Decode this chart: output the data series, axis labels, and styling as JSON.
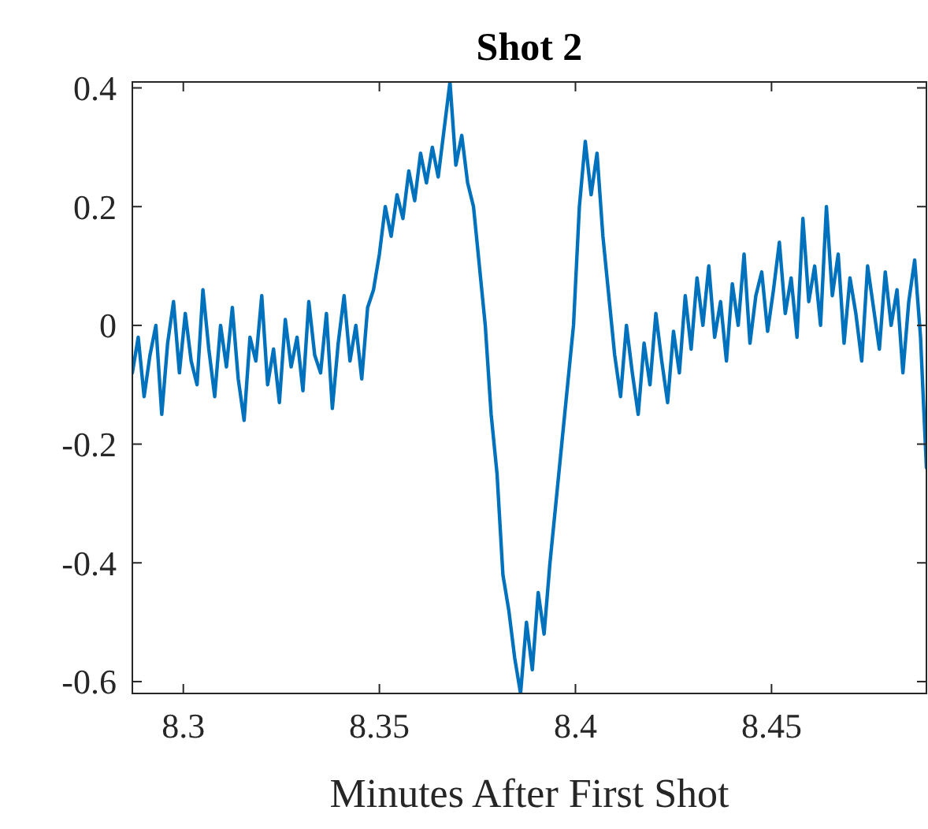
{
  "chart_data": {
    "type": "line",
    "title": "Shot 2",
    "xlabel": "Minutes After First Shot",
    "xlim": [
      8.287,
      8.4895
    ],
    "ylim": [
      -0.62,
      0.41
    ],
    "xticks": [
      8.3,
      8.35,
      8.4,
      8.45
    ],
    "yticks": [
      -0.6,
      -0.4,
      -0.2,
      0,
      0.2,
      0.4
    ],
    "grid": false,
    "series": [
      {
        "color": "#0072bd",
        "x": [
          8.287,
          8.2885,
          8.29,
          8.2915,
          8.293,
          8.2945,
          8.296,
          8.2975,
          8.299,
          8.3005,
          8.302,
          8.3035,
          8.305,
          8.3065,
          8.308,
          8.3095,
          8.311,
          8.3125,
          8.314,
          8.3155,
          8.317,
          8.3185,
          8.32,
          8.3215,
          8.323,
          8.3245,
          8.326,
          8.3275,
          8.329,
          8.3305,
          8.332,
          8.3335,
          8.335,
          8.3365,
          8.338,
          8.3395,
          8.341,
          8.3425,
          8.344,
          8.3455,
          8.347,
          8.3485,
          8.35,
          8.3515,
          8.353,
          8.3545,
          8.356,
          8.3575,
          8.359,
          8.3605,
          8.362,
          8.3635,
          8.365,
          8.3665,
          8.368,
          8.3695,
          8.371,
          8.3725,
          8.374,
          8.3755,
          8.377,
          8.3785,
          8.38,
          8.3815,
          8.383,
          8.3845,
          8.386,
          8.3875,
          8.389,
          8.3905,
          8.392,
          8.3935,
          8.395,
          8.3965,
          8.398,
          8.3995,
          8.401,
          8.4025,
          8.404,
          8.4055,
          8.407,
          8.4085,
          8.41,
          8.4115,
          8.413,
          8.4145,
          8.416,
          8.4175,
          8.419,
          8.4205,
          8.422,
          8.4235,
          8.425,
          8.4265,
          8.428,
          8.4295,
          8.431,
          8.4325,
          8.434,
          8.4355,
          8.437,
          8.4385,
          8.44,
          8.4415,
          8.443,
          8.4445,
          8.446,
          8.4475,
          8.449,
          8.4505,
          8.452,
          8.4535,
          8.455,
          8.4565,
          8.458,
          8.4595,
          8.461,
          8.4625,
          8.464,
          8.4655,
          8.467,
          8.4685,
          8.47,
          8.4715,
          8.473,
          8.4745,
          8.476,
          8.4775,
          8.479,
          8.4805,
          8.482,
          8.4835,
          8.485,
          8.4865,
          8.488,
          8.4895
        ],
        "values": [
          -0.08,
          -0.02,
          -0.12,
          -0.05,
          0.0,
          -0.15,
          -0.03,
          0.04,
          -0.08,
          0.02,
          -0.06,
          -0.1,
          0.06,
          -0.04,
          -0.12,
          0.0,
          -0.07,
          0.03,
          -0.09,
          -0.16,
          -0.02,
          -0.06,
          0.05,
          -0.1,
          -0.04,
          -0.13,
          0.01,
          -0.07,
          -0.02,
          -0.11,
          0.04,
          -0.05,
          -0.08,
          0.02,
          -0.14,
          -0.03,
          0.05,
          -0.06,
          0.0,
          -0.09,
          0.03,
          0.06,
          0.12,
          0.2,
          0.15,
          0.22,
          0.18,
          0.26,
          0.21,
          0.29,
          0.24,
          0.3,
          0.25,
          0.33,
          0.41,
          0.27,
          0.32,
          0.24,
          0.2,
          0.1,
          0.0,
          -0.15,
          -0.25,
          -0.42,
          -0.48,
          -0.56,
          -0.62,
          -0.5,
          -0.58,
          -0.45,
          -0.52,
          -0.4,
          -0.3,
          -0.2,
          -0.1,
          0.0,
          0.2,
          0.31,
          0.22,
          0.29,
          0.15,
          0.05,
          -0.05,
          -0.12,
          0.0,
          -0.08,
          -0.15,
          -0.03,
          -0.1,
          0.02,
          -0.06,
          -0.13,
          -0.01,
          -0.08,
          0.05,
          -0.04,
          0.08,
          0.0,
          0.1,
          -0.02,
          0.04,
          -0.06,
          0.07,
          0.0,
          0.12,
          -0.03,
          0.05,
          0.09,
          -0.01,
          0.06,
          0.14,
          0.02,
          0.08,
          -0.02,
          0.18,
          0.04,
          0.1,
          0.0,
          0.2,
          0.05,
          0.12,
          -0.03,
          0.08,
          0.02,
          -0.06,
          0.1,
          0.03,
          -0.04,
          0.09,
          0.0,
          0.06,
          -0.08,
          0.04,
          0.11,
          -0.02,
          -0.24
        ]
      }
    ]
  }
}
